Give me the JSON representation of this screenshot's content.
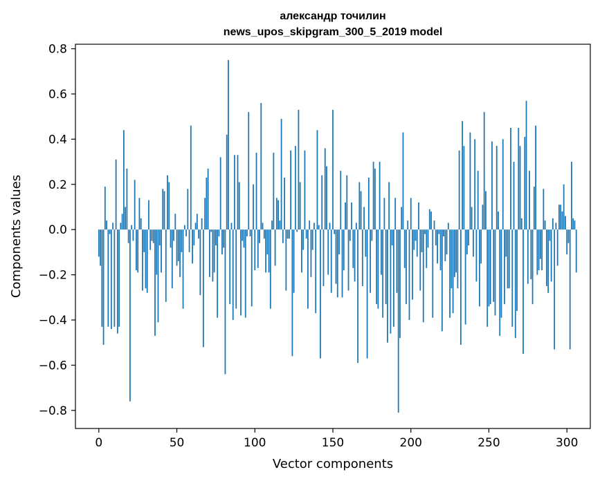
{
  "chart_data": {
    "type": "bar",
    "title_lines": [
      "александр точилин",
      "news_upos_skipgram_300_5_2019 model"
    ],
    "xlabel": "Vector components",
    "ylabel": "Components values",
    "xlim": [
      -15,
      315
    ],
    "ylim": [
      -0.88,
      0.82
    ],
    "xticks": [
      0,
      50,
      100,
      150,
      200,
      250,
      300
    ],
    "xtick_labels": [
      "0",
      "50",
      "100",
      "150",
      "200",
      "250",
      "300"
    ],
    "yticks": [
      -0.8,
      -0.6,
      -0.4,
      -0.2,
      0.0,
      0.2,
      0.4,
      0.6,
      0.8
    ],
    "ytick_labels": [
      "−0.8",
      "−0.6",
      "−0.4",
      "−0.2",
      "0.0",
      "0.2",
      "0.4",
      "0.6",
      "0.8"
    ],
    "bar_color": "#1f77b4",
    "grid": false,
    "values": [
      -0.12,
      -0.16,
      -0.43,
      -0.51,
      0.19,
      0.04,
      -0.43,
      -0.02,
      -0.44,
      0.03,
      -0.43,
      0.31,
      -0.46,
      -0.43,
      0.03,
      0.07,
      0.44,
      0.1,
      0.27,
      -0.06,
      -0.76,
      0.02,
      -0.05,
      0.22,
      -0.18,
      -0.19,
      0.14,
      0.05,
      -0.27,
      -0.1,
      -0.26,
      -0.28,
      0.13,
      -0.09,
      -0.05,
      -0.06,
      -0.47,
      -0.2,
      -0.41,
      -0.07,
      -0.19,
      0.18,
      0.17,
      -0.32,
      0.24,
      0.21,
      -0.08,
      -0.26,
      -0.05,
      0.07,
      -0.16,
      -0.14,
      -0.21,
      -0.1,
      -0.35,
      0.02,
      -0.03,
      0.18,
      -0.1,
      0.46,
      -0.15,
      -0.07,
      0.03,
      0.07,
      -0.04,
      -0.29,
      0.05,
      -0.52,
      0.14,
      0.23,
      0.27,
      -0.21,
      -0.01,
      -0.23,
      -0.19,
      -0.07,
      -0.39,
      -0.03,
      0.32,
      -0.11,
      -0.08,
      -0.64,
      0.42,
      0.75,
      -0.33,
      0.03,
      -0.4,
      0.33,
      -0.35,
      0.33,
      0.21,
      -0.38,
      -0.05,
      -0.08,
      -0.39,
      -0.03,
      0.52,
      -0.03,
      -0.34,
      0.2,
      -0.18,
      0.34,
      -0.17,
      -0.06,
      0.56,
      0.03,
      -0.04,
      -0.19,
      -0.11,
      -0.19,
      -0.35,
      0.04,
      0.34,
      -0.16,
      0.14,
      0.13,
      0.04,
      0.49,
      -0.06,
      0.23,
      -0.27,
      -0.04,
      -0.04,
      0.35,
      -0.56,
      -0.28,
      0.37,
      -0.01,
      0.53,
      0.21,
      -0.19,
      -0.09,
      0.35,
      -0.04,
      -0.35,
      0.04,
      -0.21,
      -0.09,
      0.03,
      -0.37,
      0.44,
      0.02,
      -0.57,
      0.24,
      -0.25,
      0.36,
      0.28,
      -0.2,
      0.03,
      -0.28,
      0.53,
      -0.02,
      -0.24,
      -0.3,
      -0.11,
      0.26,
      -0.3,
      -0.18,
      0.12,
      0.24,
      -0.27,
      -0.05,
      0.12,
      -0.17,
      -0.23,
      0.03,
      -0.59,
      0.21,
      0.17,
      -0.25,
      0.1,
      -0.12,
      -0.57,
      0.23,
      -0.28,
      -0.05,
      0.3,
      0.27,
      -0.33,
      -0.35,
      0.3,
      -0.2,
      -0.39,
      0.14,
      -0.33,
      -0.5,
      0.21,
      -0.46,
      -0.07,
      -0.43,
      0.14,
      -0.28,
      -0.81,
      -0.48,
      0.1,
      0.43,
      -0.17,
      -0.33,
      0.04,
      -0.4,
      0.14,
      -0.31,
      -0.09,
      -0.05,
      -0.12,
      0.12,
      -0.27,
      -0.1,
      -0.41,
      -0.02,
      -0.17,
      -0.08,
      0.09,
      0.08,
      -0.39,
      0.04,
      -0.07,
      -0.15,
      -0.02,
      -0.18,
      -0.45,
      -0.03,
      -0.14,
      -0.11,
      0.03,
      -0.39,
      -0.26,
      -0.37,
      -0.21,
      -0.19,
      -0.26,
      0.35,
      -0.51,
      0.48,
      0.37,
      -0.42,
      -0.11,
      -0.07,
      0.43,
      0.1,
      -0.12,
      0.4,
      -0.23,
      0.26,
      -0.34,
      -0.15,
      0.11,
      0.52,
      0.17,
      -0.43,
      -0.34,
      -0.33,
      0.39,
      -0.32,
      -0.38,
      0.37,
      0.08,
      -0.47,
      -0.39,
      0.4,
      -0.33,
      -0.12,
      -0.26,
      -0.26,
      0.45,
      -0.43,
      0.3,
      -0.48,
      -0.36,
      0.45,
      0.37,
      0.05,
      -0.55,
      0.41,
      0.57,
      -0.24,
      0.26,
      -0.22,
      -0.33,
      0.19,
      0.46,
      -0.2,
      -0.18,
      -0.13,
      -0.18,
      0.18,
      0.04,
      -0.25,
      -0.28,
      -0.05,
      -0.23,
      0.05,
      -0.53,
      0.03,
      -0.16,
      0.11,
      0.11,
      0.08,
      0.2,
      0.06,
      -0.11,
      -0.06,
      -0.53,
      0.3,
      0.05,
      0.04,
      -0.19
    ]
  }
}
